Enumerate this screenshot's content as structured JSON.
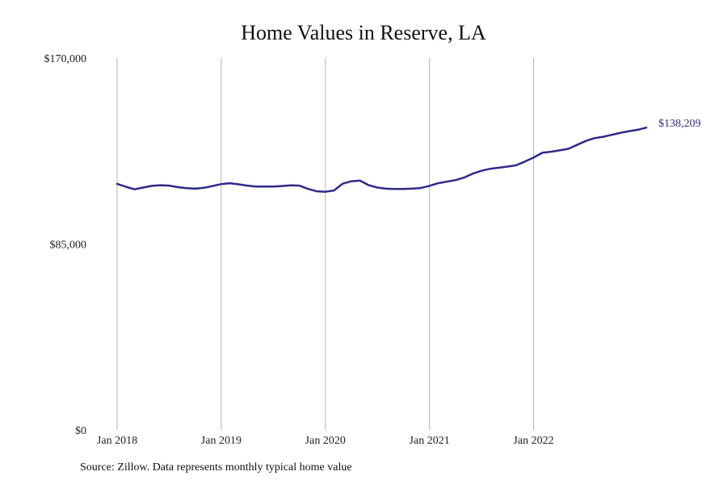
{
  "chart_data": {
    "type": "line",
    "title": "Home Values in Reserve, LA",
    "xlabel": "",
    "ylabel": "",
    "x_start": "2018-01",
    "x_ticks": [
      "Jan 2018",
      "Jan 2019",
      "Jan 2020",
      "Jan 2021",
      "Jan 2022"
    ],
    "y_ticks": [
      "$0",
      "$85,000",
      "$170,000"
    ],
    "ylim": [
      0,
      170000
    ],
    "grid": "vertical",
    "line_color": "#2e2a8a",
    "end_label": "$138,209",
    "series": [
      {
        "values": [
          112500,
          111200,
          110000,
          110800,
          111600,
          111900,
          111700,
          111000,
          110500,
          110300,
          110700,
          111500,
          112400,
          112800,
          112300,
          111700,
          111300,
          111300,
          111300,
          111500,
          111800,
          111700,
          110200,
          109100,
          108900,
          109500,
          112600,
          113700,
          114000,
          111900,
          110800,
          110300,
          110200,
          110200,
          110300,
          110600,
          111600,
          112800,
          113500,
          114200,
          115400,
          117200,
          118500,
          119400,
          119900,
          120400,
          121000,
          122700,
          124500,
          126700,
          127200,
          127800,
          128500,
          130300,
          132100,
          133400,
          134000,
          134900,
          135800,
          136600,
          137200,
          138209
        ]
      }
    ]
  },
  "source_note": "Source: Zillow. Data represents monthly typical home value"
}
